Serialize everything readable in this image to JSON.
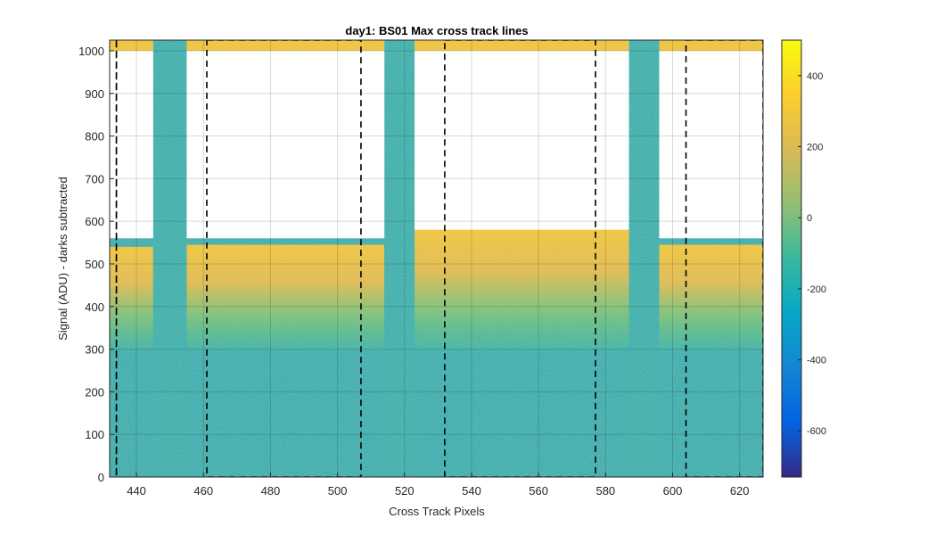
{
  "chart_data": {
    "type": "heatmap",
    "title": "day1: BS01  Max cross track lines",
    "xlabel": "Cross Track Pixels",
    "ylabel": "Signal (ADU) - darks subtracted",
    "xlim": [
      432,
      627
    ],
    "ylim": [
      0,
      1025
    ],
    "x_ticks": [
      440,
      460,
      480,
      500,
      520,
      540,
      560,
      580,
      600,
      620
    ],
    "y_ticks": [
      0,
      100,
      200,
      300,
      400,
      500,
      600,
      700,
      800,
      900,
      1000
    ],
    "grid": true,
    "colormap": "parula",
    "colorbar": {
      "range": [
        -730,
        500
      ],
      "ticks": [
        400,
        200,
        0,
        -200,
        -400,
        -600
      ],
      "colors": [
        "#352a87",
        "#0363e1",
        "#1485d4",
        "#06a7c6",
        "#38b99e",
        "#92bf73",
        "#d9ba56",
        "#fcce2e",
        "#f9fb0e"
      ]
    },
    "background_color": "#14a9b6",
    "dark_columns": [
      {
        "x_start": 445,
        "x_end": 455
      },
      {
        "x_start": 514,
        "x_end": 523
      },
      {
        "x_start": 587,
        "x_end": 596
      }
    ],
    "saturation_bands": [
      {
        "x_start": 432,
        "x_end": 445,
        "top_signal": 540
      },
      {
        "x_start": 455,
        "x_end": 514,
        "top_signal": 545
      },
      {
        "x_start": 523,
        "x_end": 587,
        "top_signal": 580
      },
      {
        "x_start": 596,
        "x_end": 627,
        "top_signal": 545
      }
    ],
    "top_band_signal": [
      1000,
      1025
    ],
    "boxes": [
      {
        "x_start": 434,
        "x_end": 434
      },
      {
        "x_start": 461,
        "x_end": 507
      },
      {
        "x_start": 532,
        "x_end": 577
      },
      {
        "x_start": 604,
        "x_end": 627
      }
    ]
  }
}
